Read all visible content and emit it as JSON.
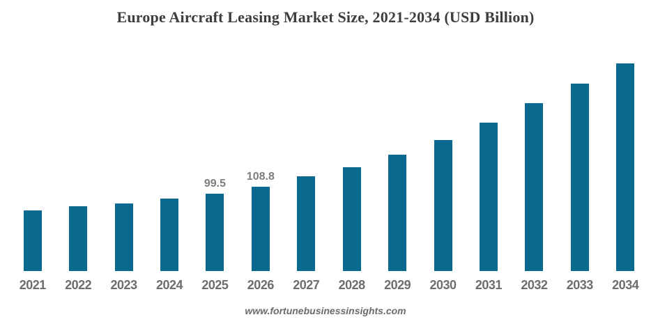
{
  "title": "Europe Aircraft Leasing Market Size, 2021-2034 (USD Billion)",
  "footer": "www.fortunebusinessinsights.com",
  "colors": {
    "background": "#ffffff",
    "bar": "#0a698f",
    "title_text": "#3d3d3d",
    "axis_label": "#6d6d6d",
    "data_label": "#7d7d7d",
    "footer_text": "#6b6b6b"
  },
  "chart_data": {
    "type": "bar",
    "title": "Europe Aircraft Leasing Market Size, 2021-2034 (USD Billion)",
    "xlabel": "",
    "ylabel": "USD Billion",
    "categories": [
      "2021",
      "2022",
      "2023",
      "2024",
      "2025",
      "2026",
      "2027",
      "2028",
      "2029",
      "2030",
      "2031",
      "2032",
      "2033",
      "2034"
    ],
    "values": [
      78.0,
      83.4,
      87.0,
      93.2,
      99.5,
      108.8,
      121.9,
      133.6,
      149.7,
      168.5,
      190.9,
      216.0,
      241.1,
      267.1
    ],
    "data_labels": {
      "2025": "99.5",
      "2026": "108.8"
    },
    "ylim": [
      0,
      295
    ],
    "grid": false,
    "axes_visible": false,
    "legend_position": "none",
    "note": "Only 2025 and 2026 carry visible data labels; other values estimated from bar heights"
  }
}
